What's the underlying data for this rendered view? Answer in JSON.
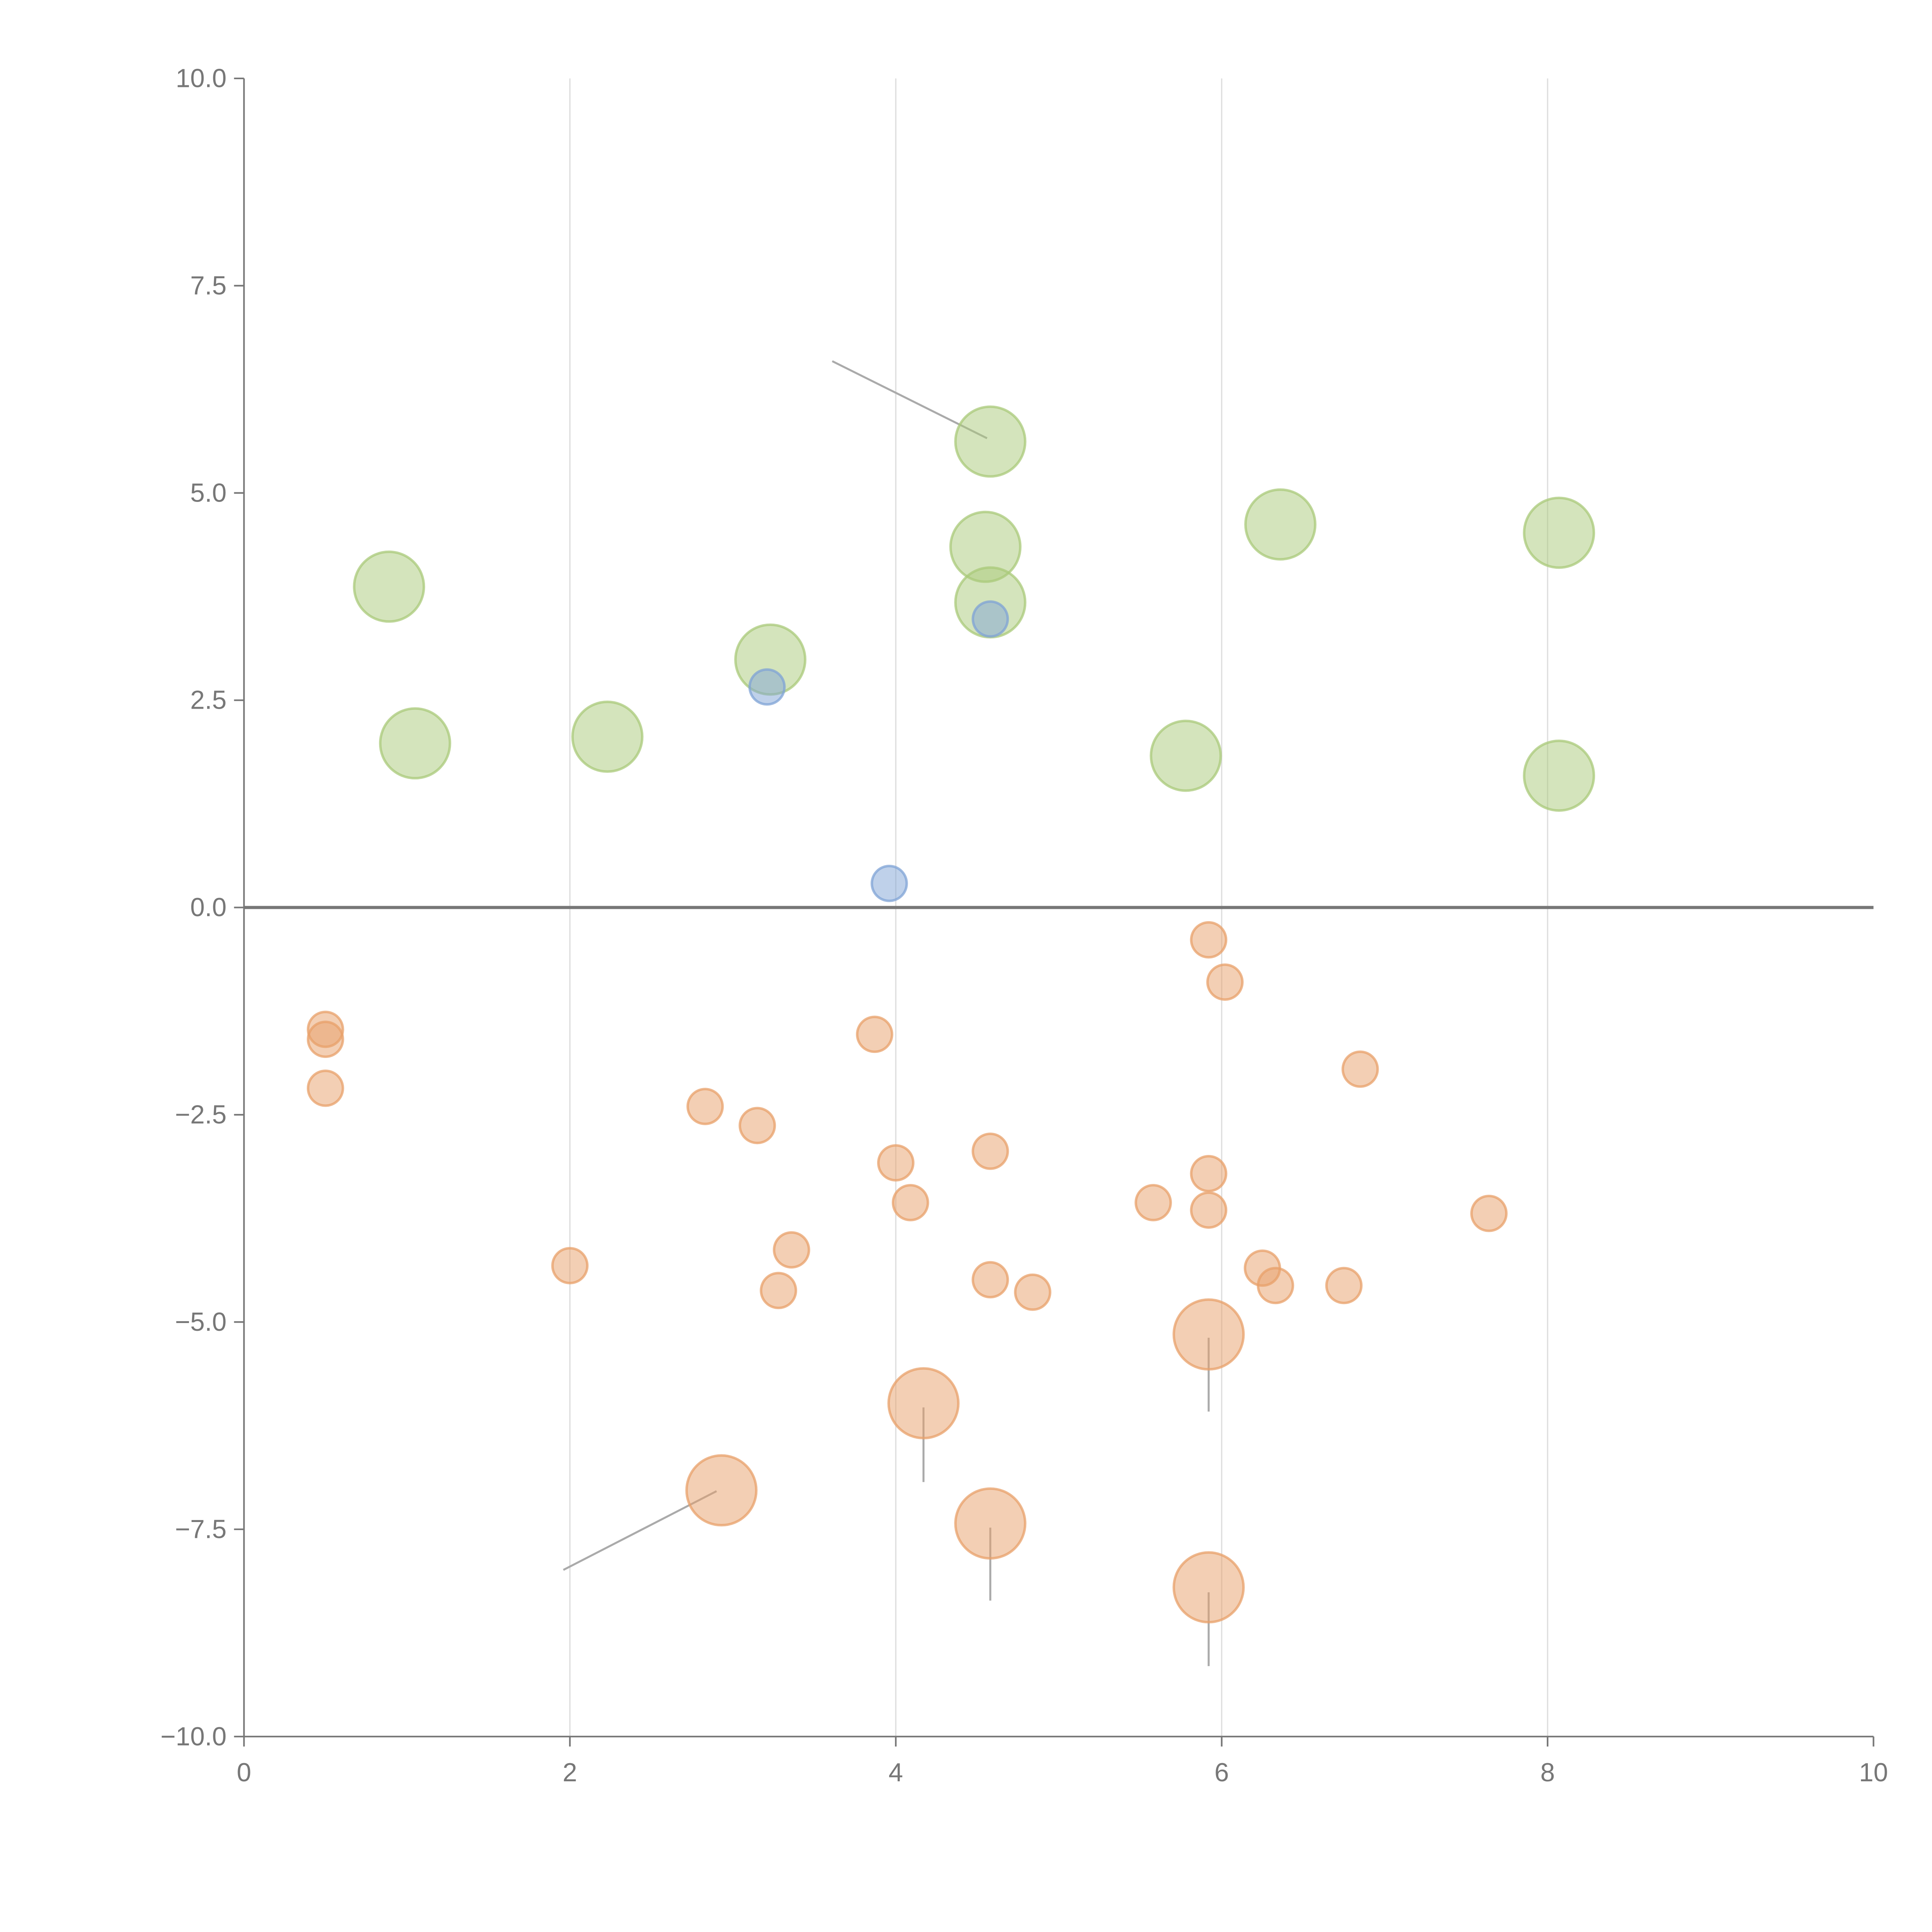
{
  "chart_data": {
    "type": "scatter",
    "title": "",
    "xlabel": "",
    "ylabel": "",
    "xlim": [
      0,
      10
    ],
    "ylim": [
      -10,
      10
    ],
    "x_ticks": [
      0,
      2,
      4,
      6,
      8,
      10
    ],
    "x_tick_labels": [
      "0",
      "2",
      "4",
      "6",
      "8",
      "10"
    ],
    "y_ticks": [
      10,
      7.5,
      5,
      2.5,
      0,
      -2.5,
      -5,
      -7.5,
      -10
    ],
    "y_tick_labels": [
      "10.0",
      "7.5",
      "5.0",
      "2.5",
      "0.0",
      "−2.5",
      "−5.0",
      "−7.5",
      "−10.0"
    ],
    "grid": "vertical",
    "zero_line": true,
    "series": [
      {
        "name": "green",
        "color": "#a9c97a",
        "size": "large",
        "points": [
          [
            0.89,
            3.87
          ],
          [
            1.05,
            1.98
          ],
          [
            2.23,
            2.06
          ],
          [
            3.23,
            2.99
          ],
          [
            4.58,
            5.62
          ],
          [
            4.55,
            4.35
          ],
          [
            4.58,
            3.68
          ],
          [
            6.36,
            4.62
          ],
          [
            8.07,
            4.52
          ],
          [
            5.78,
            1.83
          ],
          [
            8.07,
            1.59
          ]
        ]
      },
      {
        "name": "blue",
        "color": "#7fa3d6",
        "size": "small",
        "points": [
          [
            3.21,
            2.66
          ],
          [
            4.58,
            3.48
          ],
          [
            3.96,
            0.29
          ]
        ]
      },
      {
        "name": "orange",
        "color": "#e8a06a",
        "size": "small",
        "points": [
          [
            0.5,
            -1.47
          ],
          [
            0.5,
            -1.59
          ],
          [
            0.5,
            -2.18
          ],
          [
            2.83,
            -2.4
          ],
          [
            3.15,
            -2.63
          ],
          [
            3.87,
            -1.53
          ],
          [
            4.0,
            -3.08
          ],
          [
            4.09,
            -3.56
          ],
          [
            3.36,
            -4.13
          ],
          [
            3.28,
            -4.62
          ],
          [
            2.0,
            -4.32
          ],
          [
            4.58,
            -2.94
          ],
          [
            4.58,
            -4.49
          ],
          [
            4.84,
            -4.64
          ],
          [
            5.58,
            -3.56
          ],
          [
            5.92,
            -3.21
          ],
          [
            5.92,
            -3.65
          ],
          [
            5.92,
            -0.39
          ],
          [
            6.02,
            -0.9
          ],
          [
            6.85,
            -1.95
          ],
          [
            6.25,
            -4.35
          ],
          [
            6.33,
            -4.56
          ],
          [
            6.75,
            -4.56
          ],
          [
            7.64,
            -3.69
          ]
        ]
      },
      {
        "name": "orange-large",
        "color": "#e8a06a",
        "size": "large",
        "points": [
          [
            5.92,
            -5.15
          ],
          [
            4.17,
            -5.98
          ],
          [
            2.93,
            -7.03
          ],
          [
            4.58,
            -7.43
          ],
          [
            5.92,
            -8.2
          ]
        ]
      }
    ],
    "leader_lines": [
      [
        [
          3.61,
          6.59
        ],
        [
          4.56,
          5.66
        ]
      ],
      [
        [
          1.96,
          -7.99
        ],
        [
          2.9,
          -7.04
        ]
      ],
      [
        [
          4.17,
          -6.03
        ],
        [
          4.17,
          -6.93
        ]
      ],
      [
        [
          4.58,
          -7.48
        ],
        [
          4.58,
          -8.36
        ]
      ],
      [
        [
          5.92,
          -5.19
        ],
        [
          5.92,
          -6.08
        ]
      ],
      [
        [
          5.92,
          -8.26
        ],
        [
          5.92,
          -9.15
        ]
      ]
    ]
  }
}
